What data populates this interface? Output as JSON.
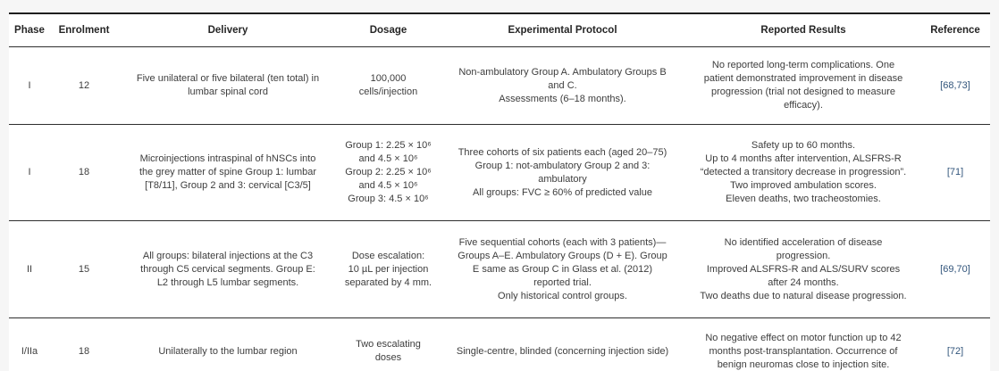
{
  "table": {
    "columns": {
      "phase": "Phase",
      "enrolment": "Enrolment",
      "delivery": "Delivery",
      "dosage": "Dosage",
      "protocol": "Experimental Protocol",
      "results": "Reported Results",
      "reference": "Reference"
    },
    "rows": [
      {
        "phase": "I",
        "enrolment": "12",
        "delivery": "Five unilateral or five bilateral (ten total) in\nlumbar spinal cord",
        "dosage": "100,000\ncells/injection",
        "protocol": "Non-ambulatory Group A. Ambulatory Groups B\nand C.\nAssessments (6–18 months).",
        "results": "No reported long-term complications. One\npatient demonstrated improvement in disease\nprogression (trial not designed to measure\nefficacy).",
        "reference": "[68,73]"
      },
      {
        "phase": "I",
        "enrolment": "18",
        "delivery": "Microinjections intraspinal of hNSCs into\nthe grey matter of spine Group 1: lumbar\n[T8/11], Group 2 and 3: cervical [C3/5]",
        "dosage": "Group 1: 2.25 × 10⁶\nand 4.5 × 10⁶\nGroup 2: 2.25 × 10⁶\nand 4.5 × 10⁶\nGroup 3: 4.5 × 10⁶",
        "protocol": "Three cohorts of six patients each (aged 20–75)\nGroup 1: not-ambulatory Group 2 and 3:\nambulatory\nAll groups: FVC ≥ 60% of predicted value",
        "results": "Safety up to 60 months.\nUp to 4 months after intervention, ALSFRS-R\n“detected a transitory decrease in progression”.\nTwo improved ambulation scores.\nEleven deaths, two tracheostomies.",
        "reference": "[71]"
      },
      {
        "phase": "II",
        "enrolment": "15",
        "delivery": "All groups: bilateral injections at the C3\nthrough C5 cervical segments. Group E:\nL2 through L5 lumbar segments.",
        "dosage": "Dose escalation:\n10 µL per injection\nseparated by 4 mm.",
        "protocol": "Five sequential cohorts (each with 3 patients)—\nGroups A–E. Ambulatory Groups (D + E). Group\nE same as Group C in Glass et al. (2012)\nreported trial.\nOnly historical control groups.",
        "results": "No identified acceleration of disease\nprogression.\nImproved ALSFRS-R and ALS/SURV scores\nafter 24 months.\nTwo deaths due to natural disease progression.",
        "reference": "[69,70]"
      },
      {
        "phase": "I/IIa",
        "enrolment": "18",
        "delivery": "Unilaterally to the lumbar region",
        "dosage": "Two escalating\ndoses",
        "protocol": "Single-centre, blinded (concerning injection side)",
        "results": "No negative effect on motor function up to 42\nmonths post-transplantation. Occurrence of\nbenign neuromas close to injection site.",
        "reference": "[72]"
      }
    ],
    "colors": {
      "reference_link": "#33567c",
      "border_dark": "#1f1f1f",
      "background": "#f6f6f6"
    }
  }
}
